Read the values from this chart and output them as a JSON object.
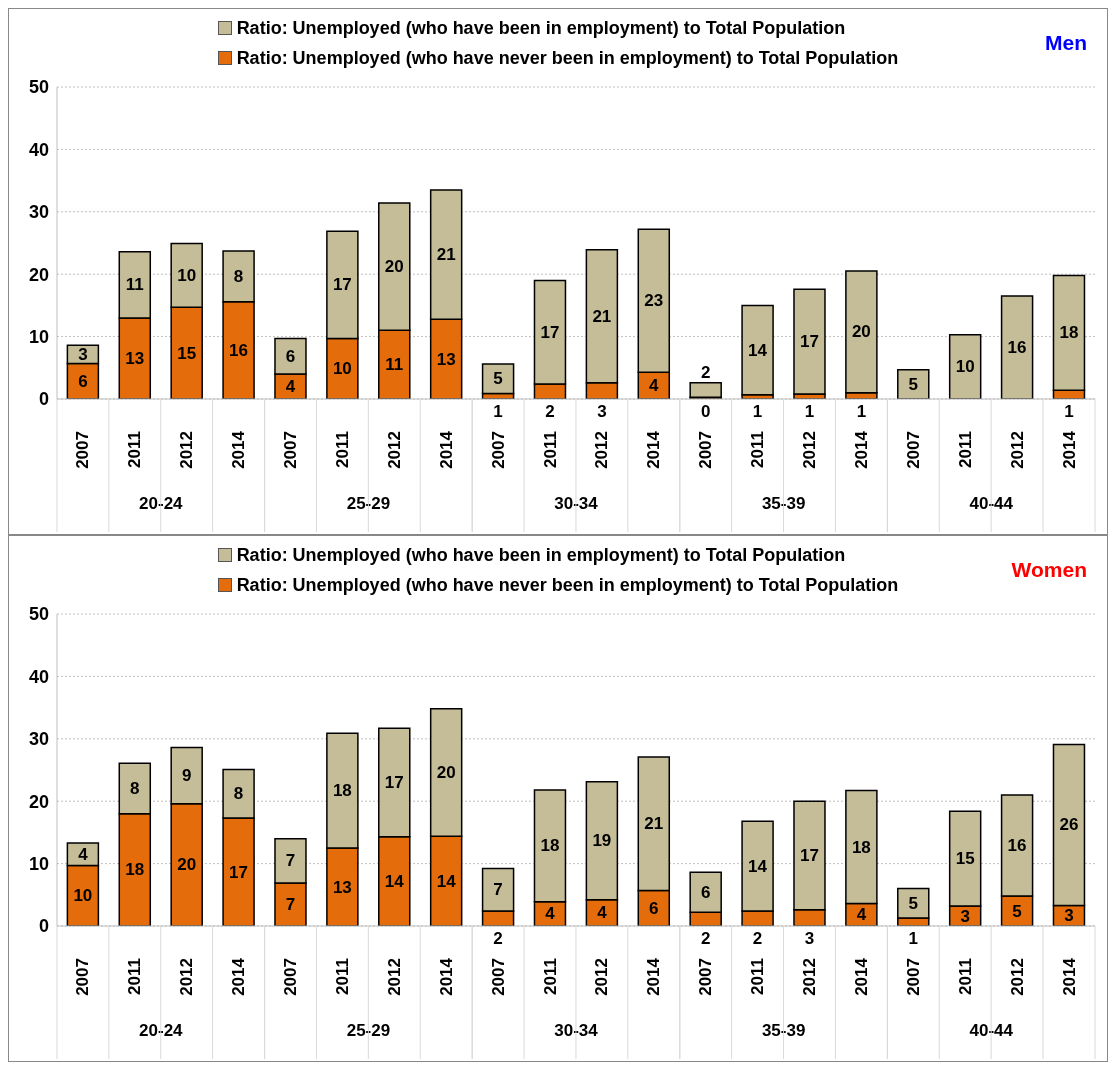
{
  "chart_data": [
    {
      "type": "bar",
      "title": "Men",
      "stacked": true,
      "categories": [
        "2007",
        "2011",
        "2012",
        "2014",
        "2007",
        "2011",
        "2012",
        "2014",
        "2007",
        "2011",
        "2012",
        "2014",
        "2007",
        "2011",
        "2012",
        "2014",
        "2007",
        "2011",
        "2012",
        "2014"
      ],
      "annotations": [
        "20-24",
        "25-29",
        "30-34",
        "35-39",
        "40-44"
      ],
      "ylim": [
        0,
        50
      ],
      "yticks": [
        0,
        10,
        20,
        30,
        40,
        50
      ],
      "grid": "y",
      "legend": "top",
      "series": [
        {
          "name": "Ratio: Unemployed (who have never been in employment) to Total Population",
          "color": "#e46c0a",
          "values": [
            5.7,
            13.0,
            14.7,
            15.6,
            4.0,
            9.7,
            11.0,
            12.8,
            0.9,
            2.4,
            2.6,
            4.3,
            0.3,
            0.7,
            0.8,
            1.0,
            0,
            0,
            0,
            1.4
          ],
          "value_labels": [
            "6",
            "13",
            "15",
            "16",
            "4",
            "10",
            "11",
            "13",
            "1",
            "2",
            "3",
            "4",
            "0",
            "1",
            "1",
            "1",
            null,
            null,
            null,
            "1"
          ]
        },
        {
          "name": "Ratio: Unemployed (who have  been in employment) to Total Population",
          "color": "#c4bd97",
          "values": [
            2.9,
            10.6,
            10.2,
            8.1,
            5.7,
            17.2,
            20.4,
            20.7,
            4.7,
            16.6,
            21.3,
            22.9,
            2.3,
            14.3,
            16.8,
            19.5,
            4.7,
            10.3,
            16.5,
            18.4
          ],
          "value_labels": [
            "3",
            "11",
            "10",
            "8",
            "6",
            "17",
            "20",
            "21",
            "5",
            "17",
            "21",
            "23",
            "2",
            "14",
            "17",
            "20",
            "5",
            "10",
            "16",
            "18"
          ]
        }
      ]
    },
    {
      "type": "bar",
      "title": "Women",
      "stacked": true,
      "categories": [
        "2007",
        "2011",
        "2012",
        "2014",
        "2007",
        "2011",
        "2012",
        "2014",
        "2007",
        "2011",
        "2012",
        "2014",
        "2007",
        "2011",
        "2012",
        "2014",
        "2007",
        "2011",
        "2012",
        "2014"
      ],
      "annotations": [
        "20-24",
        "25-29",
        "30-34",
        "35-39",
        "40-44"
      ],
      "ylim": [
        0,
        50
      ],
      "yticks": [
        0,
        10,
        20,
        30,
        40,
        50
      ],
      "grid": "y",
      "legend": "top",
      "series": [
        {
          "name": "Ratio: Unemployed (who have never been in employment) to Total Population",
          "color": "#e46c0a",
          "values": [
            9.7,
            18.0,
            19.6,
            17.3,
            6.9,
            12.5,
            14.3,
            14.4,
            2.4,
            3.9,
            4.2,
            5.7,
            2.2,
            2.4,
            2.6,
            3.6,
            1.3,
            3.2,
            4.8,
            3.3
          ],
          "value_labels": [
            "10",
            "18",
            "20",
            "17",
            "7",
            "13",
            "14",
            "14",
            "2",
            "4",
            "4",
            "6",
            "2",
            "2",
            "3",
            "4",
            "1",
            "3",
            "5",
            "3"
          ]
        },
        {
          "name": "Ratio: Unemployed (who have been in employment) to Total Population",
          "color": "#c4bd97",
          "values": [
            3.6,
            8.1,
            9.0,
            7.8,
            7.1,
            18.4,
            17.4,
            20.4,
            6.8,
            17.9,
            18.9,
            21.4,
            6.4,
            14.4,
            17.4,
            18.1,
            4.7,
            15.2,
            16.2,
            25.8
          ],
          "value_labels": [
            "4",
            "8",
            "9",
            "8",
            "7",
            "18",
            "17",
            "20",
            "7",
            "18",
            "19",
            "21",
            "6",
            "14",
            "17",
            "18",
            "5",
            "15",
            "16",
            "26"
          ]
        }
      ]
    }
  ]
}
